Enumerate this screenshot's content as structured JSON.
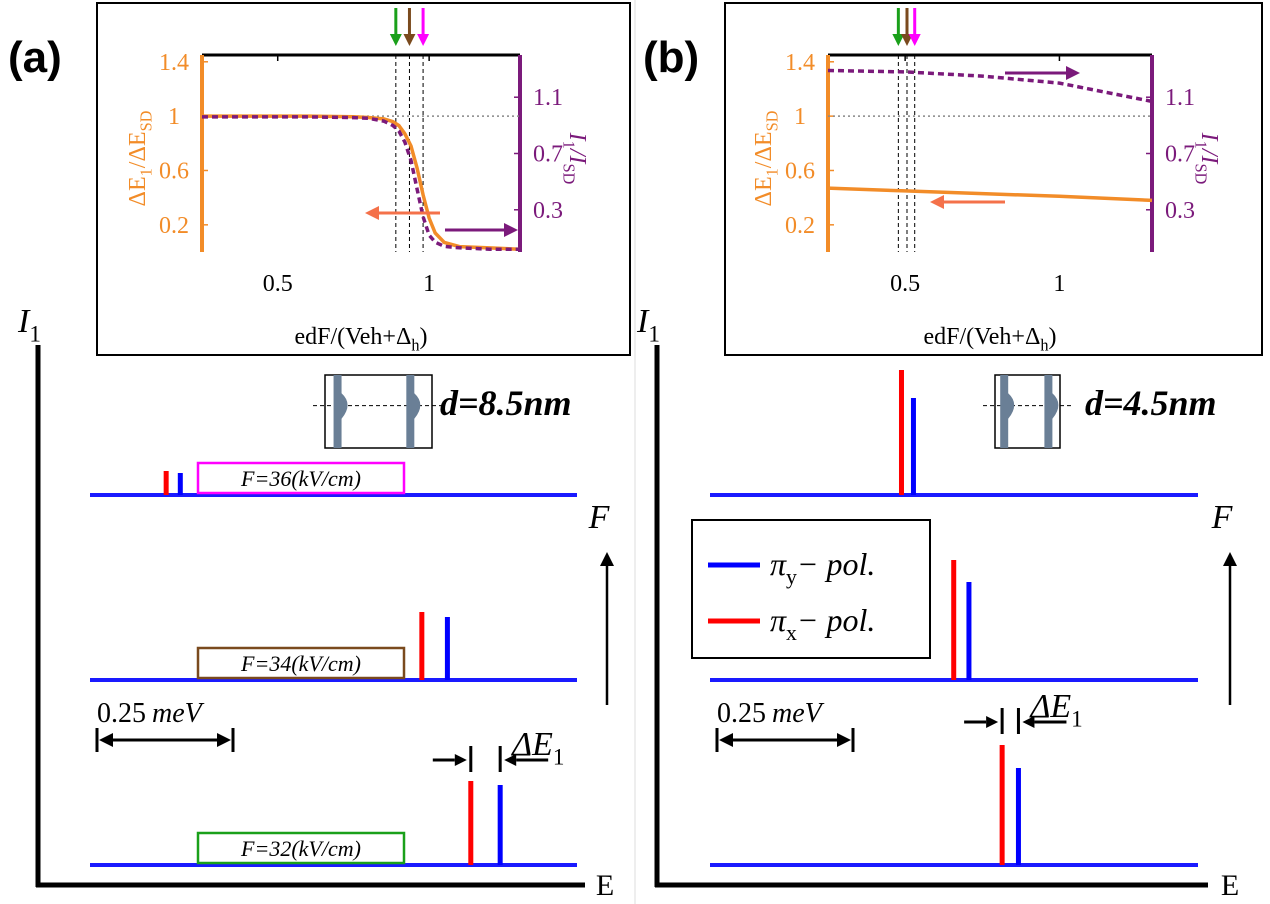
{
  "chart_data": [
    {
      "type": "line",
      "label": "(a)",
      "xlabel": [
        "edF/(Veh+Δ",
        "h",
        ")"
      ],
      "ylabel": [
        "ΔE",
        "1",
        "/ΔE",
        "SD"
      ],
      "y2label": [
        "I",
        "1",
        "/I",
        "SD"
      ],
      "xlim": [
        0.25,
        1.3
      ],
      "xticks": [
        0.5,
        1
      ],
      "ylim": [
        0,
        1.45
      ],
      "yticks": [
        0.2,
        0.6,
        1,
        1.4
      ],
      "y2lim": [
        0,
        1.4
      ],
      "y2ticks": [
        0.3,
        0.7,
        1.1
      ],
      "reference_y": 1,
      "x": [
        0.25,
        0.4,
        0.6,
        0.75,
        0.8,
        0.85,
        0.88,
        0.9,
        0.92,
        0.94,
        0.96,
        0.98,
        1.0,
        1.02,
        1.05,
        1.1,
        1.2,
        1.3
      ],
      "series": [
        {
          "color": "#f28c28",
          "style": "solid",
          "axis": "y",
          "values": [
            1,
            1,
            1,
            0.995,
            0.99,
            0.98,
            0.96,
            0.93,
            0.87,
            0.78,
            0.62,
            0.42,
            0.25,
            0.14,
            0.07,
            0.04,
            0.03,
            0.02
          ]
        },
        {
          "color": "#7b1a7b",
          "style": "dashed",
          "axis": "y2",
          "values": [
            0.96,
            0.96,
            0.96,
            0.955,
            0.95,
            0.93,
            0.9,
            0.86,
            0.78,
            0.65,
            0.45,
            0.25,
            0.12,
            0.07,
            0.04,
            0.03,
            0.02,
            0.02
          ]
        }
      ],
      "field_markers": {
        "x": [
          0.89,
          0.935,
          0.98
        ],
        "colors": [
          "#1aa01a",
          "#7a4a1e",
          "#ff00ff"
        ]
      },
      "spectra": [
        {
          "label": "F=36(kV/cm)",
          "label_color": "#ff00ff",
          "red_energy": 0.14,
          "red_height": 0.24,
          "blue_energy": 0.166,
          "blue_height": 0.22
        },
        {
          "label": "F=34(kV/cm)",
          "label_color": "#7a4a1e",
          "red_energy": 0.61,
          "red_height": 0.68,
          "blue_energy": 0.657,
          "blue_height": 0.63
        },
        {
          "label": "F=32(kV/cm)",
          "label_color": "#1aa01a",
          "red_energy": 0.7,
          "red_height": 0.84,
          "blue_energy": 0.754,
          "blue_height": 0.8
        }
      ],
      "peak_colors": {
        "red": "#ff0000",
        "blue": "#0000ff"
      },
      "scale_bar": {
        "value": 0.25,
        "unit": "meV"
      },
      "delta_label": [
        "ΔE",
        "1"
      ],
      "intensity_label": [
        "I",
        "1"
      ],
      "energy_label": "E",
      "field_label": "F",
      "d_label": "d=8.5nm"
    },
    {
      "type": "line",
      "label": "(b)",
      "xlabel": [
        "edF/(Veh+Δ",
        "h",
        ")"
      ],
      "ylabel": [
        "ΔE",
        "1",
        "/ΔE",
        "SD"
      ],
      "y2label": [
        "I",
        "1",
        "/I",
        "SD"
      ],
      "xlim": [
        0.25,
        1.3
      ],
      "xticks": [
        0.5,
        1
      ],
      "ylim": [
        0,
        1.45
      ],
      "yticks": [
        0.2,
        0.6,
        1,
        1.4
      ],
      "y2lim": [
        0,
        1.4
      ],
      "y2ticks": [
        0.3,
        0.7,
        1.1
      ],
      "reference_y": 1,
      "x": [
        0.25,
        0.5,
        0.75,
        1.0,
        1.3
      ],
      "series": [
        {
          "color": "#f28c28",
          "style": "solid",
          "axis": "y",
          "values": [
            0.47,
            0.45,
            0.43,
            0.41,
            0.38
          ]
        },
        {
          "color": "#7b1a7b",
          "style": "dashed",
          "axis": "y2",
          "values": [
            1.29,
            1.28,
            1.25,
            1.2,
            1.07
          ]
        }
      ],
      "field_markers": {
        "x": [
          0.478,
          0.506,
          0.531
        ],
        "colors": [
          "#1aa01a",
          "#7a4a1e",
          "#ff00ff"
        ]
      },
      "spectra": [
        {
          "red_energy": 0.352,
          "red_height": 1.25,
          "blue_energy": 0.374,
          "blue_height": 0.97
        },
        {
          "red_energy": 0.448,
          "red_height": 1.2,
          "blue_energy": 0.476,
          "blue_height": 0.98
        },
        {
          "red_energy": 0.537,
          "red_height": 1.2,
          "blue_energy": 0.567,
          "blue_height": 0.97
        }
      ],
      "peak_colors": {
        "red": "#ff0000",
        "blue": "#0000ff"
      },
      "legend": [
        {
          "parts": [
            "π",
            "y",
            "− pol."
          ],
          "color": "#0000ff"
        },
        {
          "parts": [
            "π",
            "x",
            "− pol."
          ],
          "color": "#ff0000"
        }
      ],
      "scale_bar": {
        "value": 0.25,
        "unit": "meV"
      },
      "delta_label": [
        "ΔE",
        "1"
      ],
      "intensity_label": [
        "I",
        "1"
      ],
      "energy_label": "E",
      "field_label": "F",
      "d_label": "d=4.5nm"
    }
  ]
}
